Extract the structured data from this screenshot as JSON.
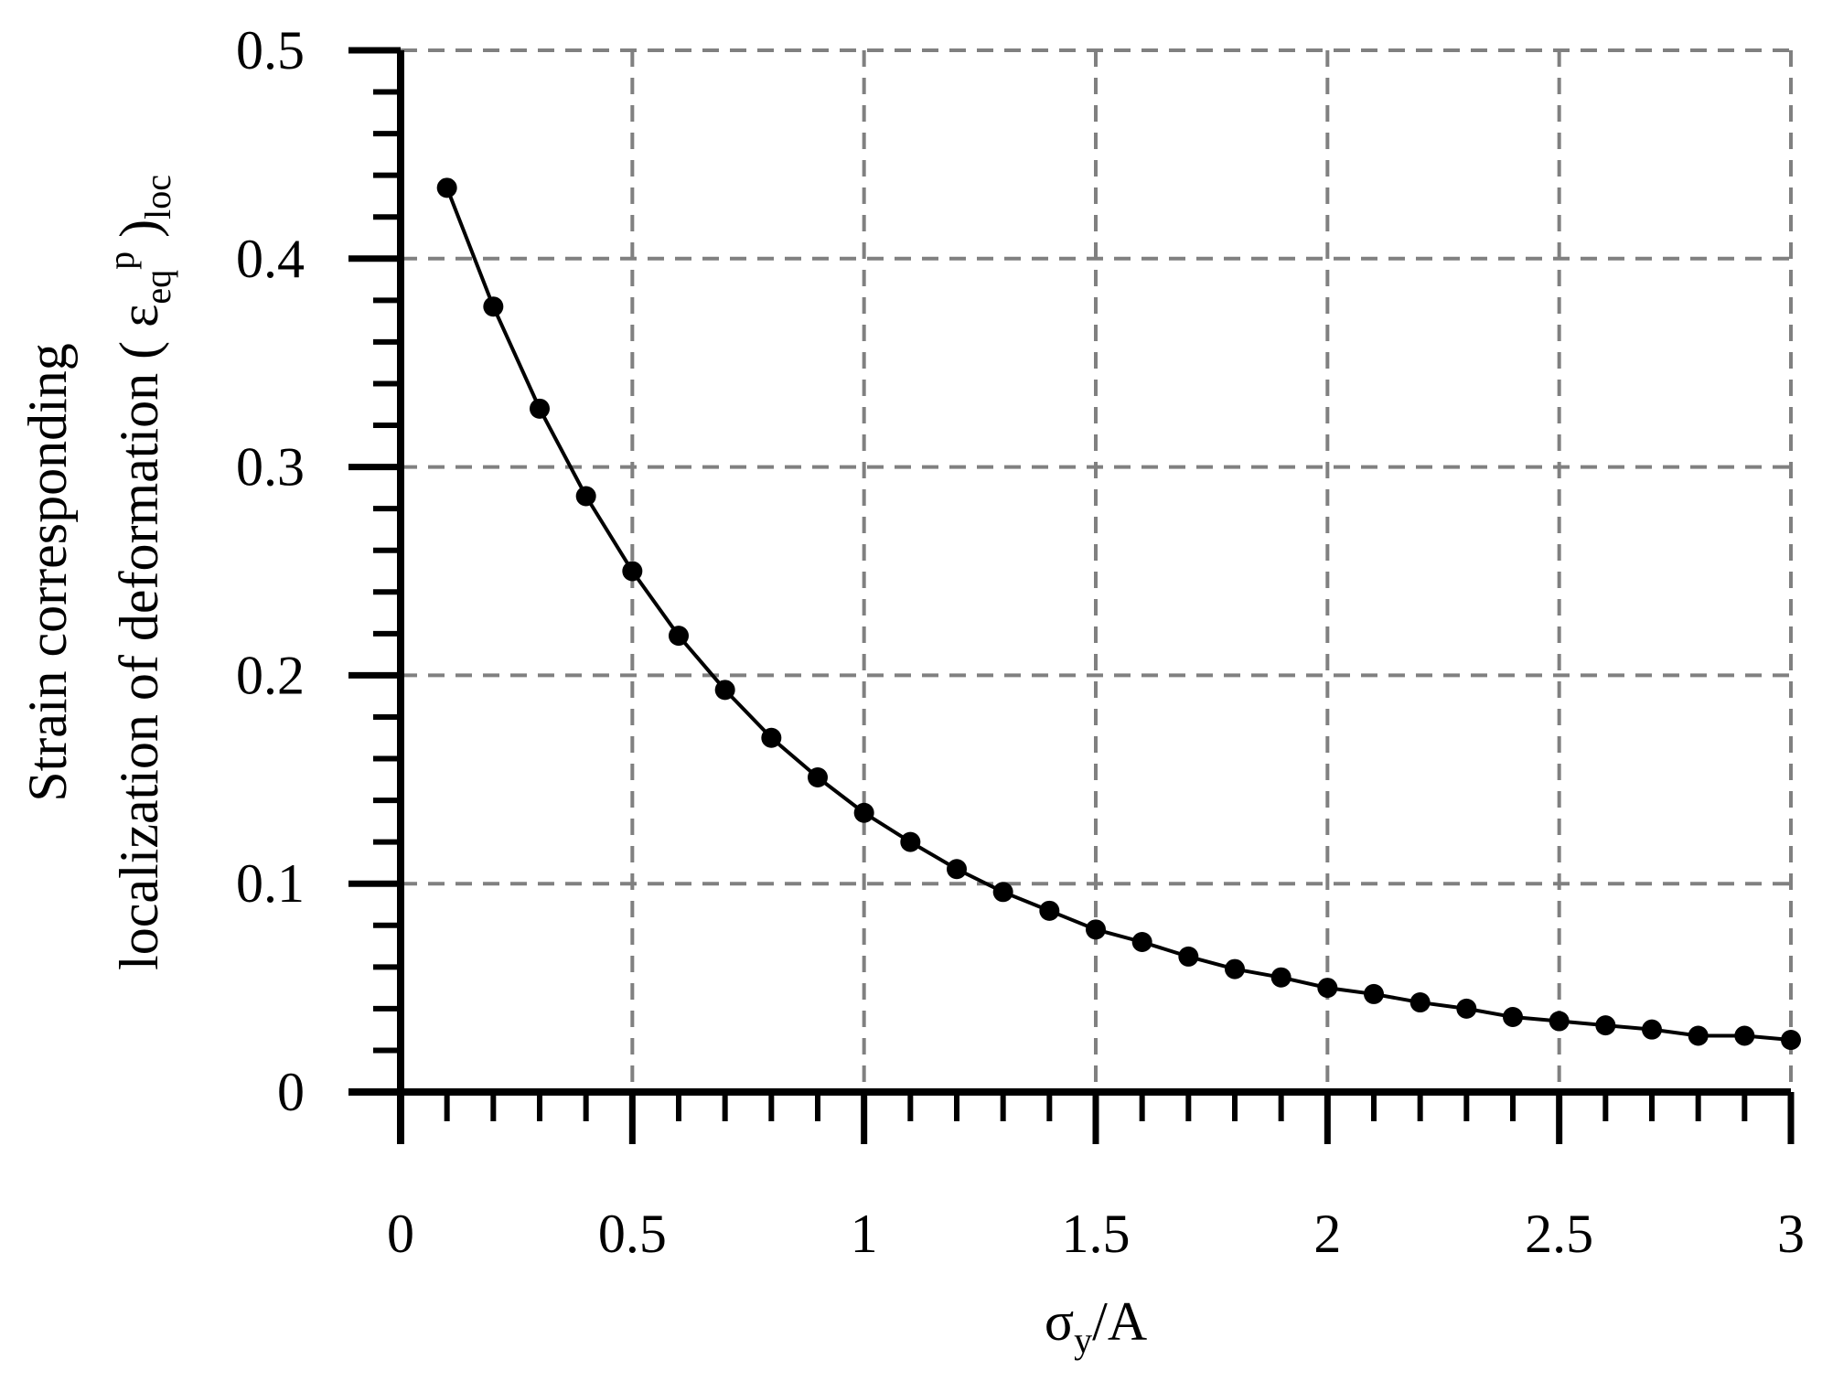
{
  "chart_data": {
    "type": "line",
    "xlabel": [
      "σ",
      "y",
      "/A"
    ],
    "ylabel": {
      "line1": "Strain corresponding",
      "line2": [
        "localization of deformation ( ",
        "ε",
        "eq",
        "p",
        " )",
        "loc"
      ]
    },
    "x": [
      0.1,
      0.2,
      0.3,
      0.4,
      0.5,
      0.6,
      0.7,
      0.8,
      0.9,
      1.0,
      1.1,
      1.2,
      1.3,
      1.4,
      1.5,
      1.6,
      1.7,
      1.8,
      1.9,
      2.0,
      2.1,
      2.2,
      2.3,
      2.4,
      2.5,
      2.6,
      2.7,
      2.8,
      2.9,
      3.0
    ],
    "series": [
      {
        "color": "#000000",
        "marker": "circle",
        "values": [
          0.434,
          0.377,
          0.328,
          0.286,
          0.25,
          0.219,
          0.193,
          0.17,
          0.151,
          0.134,
          0.12,
          0.107,
          0.096,
          0.087,
          0.078,
          0.072,
          0.065,
          0.059,
          0.055,
          0.05,
          0.047,
          0.043,
          0.04,
          0.036,
          0.034,
          0.032,
          0.03,
          0.027,
          0.027,
          0.025
        ]
      }
    ],
    "xlim": [
      0,
      3
    ],
    "xticks": [
      0,
      0.5,
      1,
      1.5,
      2,
      2.5,
      3
    ],
    "xminorticks": [
      0.1,
      0.2,
      0.3,
      0.4,
      0.6,
      0.7,
      0.8,
      0.9,
      1.1,
      1.2,
      1.3,
      1.4,
      1.6,
      1.7,
      1.8,
      1.9,
      2.1,
      2.2,
      2.3,
      2.4,
      2.6,
      2.7,
      2.8,
      2.9
    ],
    "ylim": [
      0,
      0.5
    ],
    "yticks": [
      0,
      0.1,
      0.2,
      0.3,
      0.4,
      0.5
    ],
    "yminorticks": [
      0.02,
      0.04,
      0.06,
      0.08,
      0.12,
      0.14,
      0.16,
      0.18,
      0.22,
      0.24,
      0.26,
      0.28,
      0.32,
      0.34,
      0.36,
      0.38,
      0.42,
      0.44,
      0.46,
      0.48
    ],
    "grid": true
  }
}
